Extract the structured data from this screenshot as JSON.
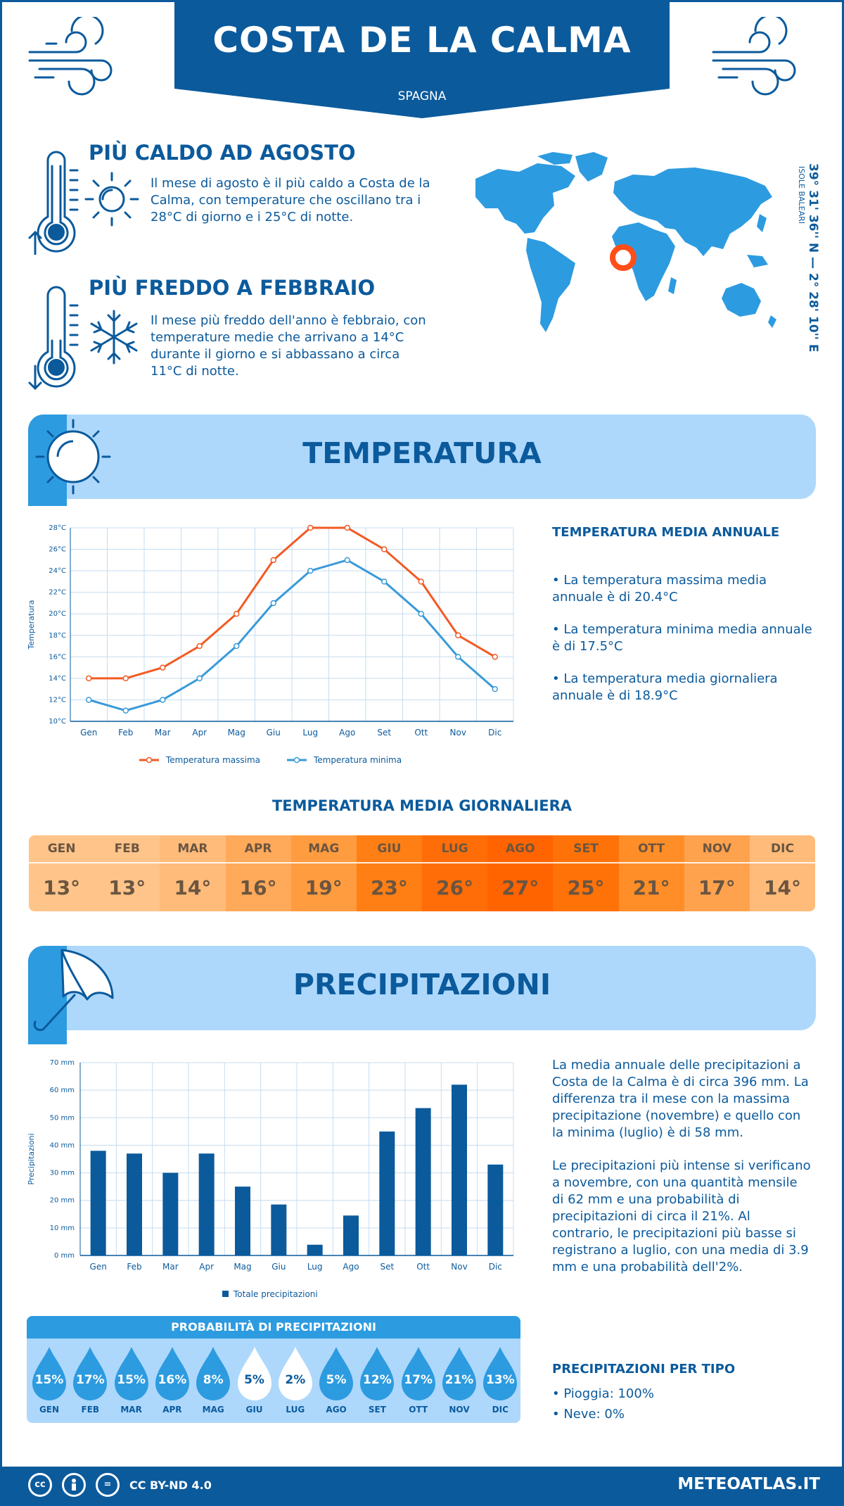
{
  "header": {
    "title": "COSTA DE LA CALMA",
    "subtitle": "SPAGNA"
  },
  "facts": {
    "hot": {
      "title": "PIÙ CALDO AD AGOSTO",
      "text": "Il mese di agosto è il più caldo a Costa de la Calma, con temperature che oscillano tra i 28°C di giorno e i 25°C di notte."
    },
    "cold": {
      "title": "PIÙ FREDDO A FEBBRAIO",
      "text": "Il mese più freddo dell'anno è febbraio, con temperature medie che arrivano a 14°C durante il giorno e si abbassano a circa 11°C di notte."
    }
  },
  "location": {
    "coords": "39° 31' 36'' N — 2° 28' 10'' E",
    "region": "ISOLE BALEARI"
  },
  "temperature": {
    "banner_title": "TEMPERATURA",
    "annual_title": "TEMPERATURA MEDIA ANNUALE",
    "annual_items": [
      "• La temperatura massima media annuale è di 20.4°C",
      "• La temperatura minima media annuale è di 17.5°C",
      "• La temperatura media giornaliera annuale è di 18.9°C"
    ],
    "daily_title": "TEMPERATURA MEDIA GIORNALIERA",
    "daily": [
      {
        "month": "GEN",
        "value": "13°",
        "color": "#ffc48a"
      },
      {
        "month": "FEB",
        "value": "13°",
        "color": "#ffc48a"
      },
      {
        "month": "MAR",
        "value": "14°",
        "color": "#ffbb7a"
      },
      {
        "month": "APR",
        "value": "16°",
        "color": "#ffa95a"
      },
      {
        "month": "MAG",
        "value": "19°",
        "color": "#ff9c3f"
      },
      {
        "month": "GIU",
        "value": "23°",
        "color": "#ff7f14"
      },
      {
        "month": "LUG",
        "value": "26°",
        "color": "#ff6d08"
      },
      {
        "month": "AGO",
        "value": "27°",
        "color": "#ff6400"
      },
      {
        "month": "SET",
        "value": "25°",
        "color": "#ff7208"
      },
      {
        "month": "OTT",
        "value": "21°",
        "color": "#ff8e28"
      },
      {
        "month": "NOV",
        "value": "17°",
        "color": "#ffa24e"
      },
      {
        "month": "DIC",
        "value": "14°",
        "color": "#ffbb7a"
      }
    ]
  },
  "temp_chart": {
    "chart_data": {
      "type": "line",
      "categories": [
        "Gen",
        "Feb",
        "Mar",
        "Apr",
        "Mag",
        "Giu",
        "Lug",
        "Ago",
        "Set",
        "Ott",
        "Nov",
        "Dic"
      ],
      "series": [
        {
          "name": "Temperatura massima",
          "values": [
            14,
            14,
            15,
            17,
            20,
            25,
            28,
            28,
            26,
            23,
            18,
            16
          ],
          "color": "#f25a23"
        },
        {
          "name": "Temperatura minima",
          "values": [
            12,
            11,
            12,
            14,
            17,
            21,
            24,
            25,
            23,
            20,
            16,
            13
          ],
          "color": "#3a9ad9"
        }
      ],
      "ylabel": "Temperatura",
      "yticks": [
        "10°C",
        "12°C",
        "14°C",
        "16°C",
        "18°C",
        "20°C",
        "22°C",
        "24°C",
        "26°C",
        "28°C"
      ],
      "ylim": [
        10,
        28
      ],
      "grid": true,
      "legend": "bottom-center"
    }
  },
  "precipitation": {
    "banner_title": "PRECIPITAZIONI",
    "text_1": "La media annuale delle precipitazioni a Costa de la Calma è di circa 396 mm. La differenza tra il mese con la massima precipitazione (novembre) e quello con la minima (luglio) è di 58 mm.",
    "text_2": "Le precipitazioni più intense si verificano a novembre, con una quantità mensile di 62 mm e una probabilità di precipitazioni di circa il 21%. Al contrario, le precipitazioni più basse si registrano a luglio, con una media di 3.9 mm e una probabilità dell'2%.",
    "prob_title": "PROBABILITÀ DI PRECIPITAZIONI",
    "prob": [
      {
        "month": "GEN",
        "value": "15%"
      },
      {
        "month": "FEB",
        "value": "17%"
      },
      {
        "month": "MAR",
        "value": "15%"
      },
      {
        "month": "APR",
        "value": "16%"
      },
      {
        "month": "MAG",
        "value": "8%"
      },
      {
        "month": "GIU",
        "value": "5%",
        "light": true
      },
      {
        "month": "LUG",
        "value": "2%",
        "light": true
      },
      {
        "month": "AGO",
        "value": "5%"
      },
      {
        "month": "SET",
        "value": "12%"
      },
      {
        "month": "OTT",
        "value": "17%"
      },
      {
        "month": "NOV",
        "value": "21%"
      },
      {
        "month": "DIC",
        "value": "13%"
      }
    ],
    "type_title": "PRECIPITAZIONI PER TIPO",
    "types": [
      "• Pioggia: 100%",
      "• Neve: 0%"
    ]
  },
  "precip_chart": {
    "chart_data": {
      "type": "bar",
      "categories": [
        "Gen",
        "Feb",
        "Mar",
        "Apr",
        "Mag",
        "Giu",
        "Lug",
        "Ago",
        "Set",
        "Ott",
        "Nov",
        "Dic"
      ],
      "series": [
        {
          "name": "Totale precipitazioni",
          "values": [
            38,
            37,
            30,
            37,
            25,
            18.5,
            3.9,
            14.5,
            45,
            53.5,
            62,
            33
          ],
          "color": "#0b5a9c"
        }
      ],
      "ylabel": "Precipitazioni",
      "yticks": [
        "0 mm",
        "10 mm",
        "20 mm",
        "30 mm",
        "40 mm",
        "50 mm",
        "60 mm",
        "70 mm"
      ],
      "ylim": [
        0,
        70
      ],
      "grid": true,
      "legend": "bottom-center"
    }
  },
  "footer": {
    "license": "CC BY-ND 4.0",
    "site": "METEOATLAS.IT",
    "cc_label": "cc",
    "eq_label": "="
  }
}
